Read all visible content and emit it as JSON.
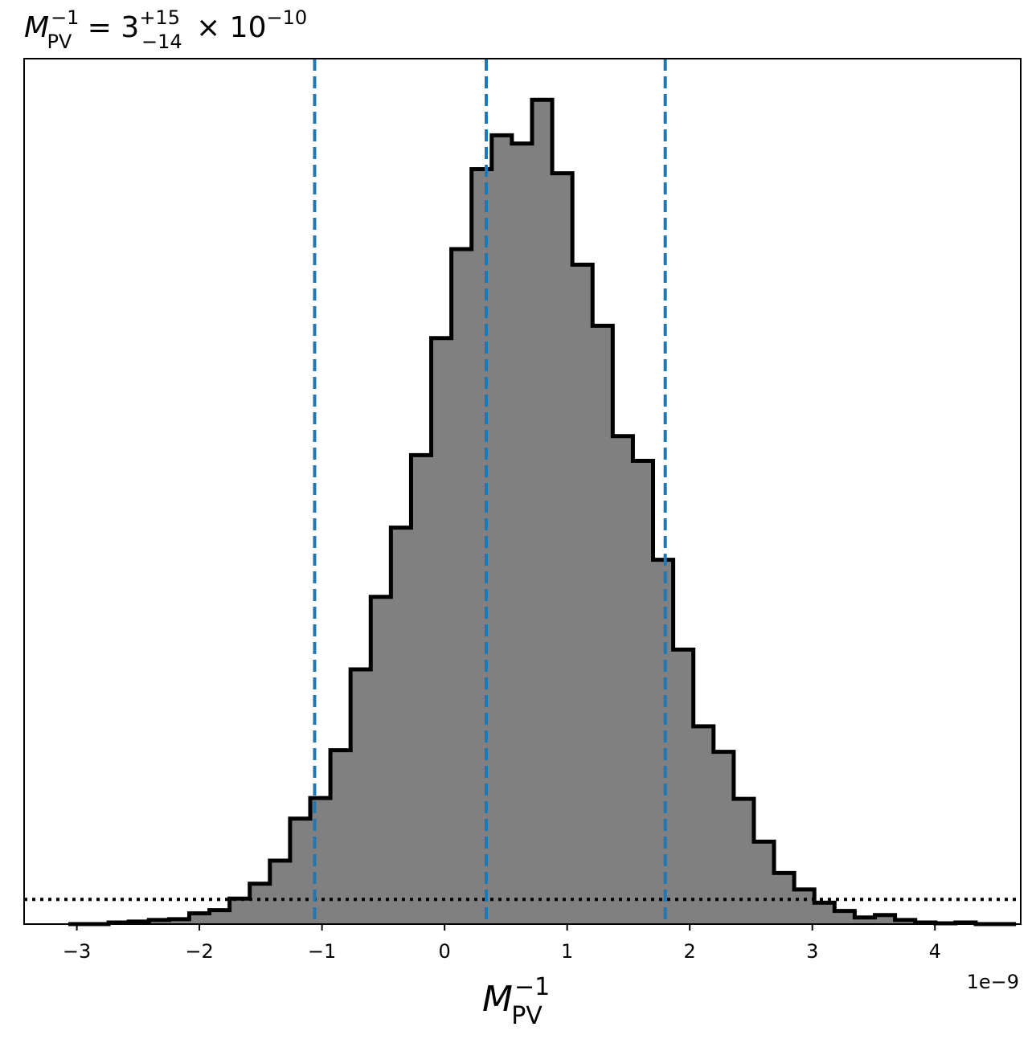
{
  "chart_data": {
    "type": "histogram",
    "title": {
      "lhs": "M",
      "lhs_sup": "−1",
      "lhs_sub": "PV",
      "equals": " = 3",
      "plus": "+15",
      "minus": "−14",
      "times": " × 10",
      "exp": "−10"
    },
    "xlabel": {
      "base": "M",
      "sup": "−1",
      "sub": "PV"
    },
    "x_offset_label": "1e−9",
    "xlim": [
      -3.43,
      4.7
    ],
    "ylim": [
      0,
      1.05
    ],
    "xticks": [
      {
        "value": -3,
        "label": "−3"
      },
      {
        "value": -2,
        "label": "−2"
      },
      {
        "value": -1,
        "label": "−1"
      },
      {
        "value": 0,
        "label": "0"
      },
      {
        "value": 1,
        "label": "1"
      },
      {
        "value": 2,
        "label": "2"
      },
      {
        "value": 3,
        "label": "3"
      },
      {
        "value": 4,
        "label": "4"
      }
    ],
    "bin_start": -3.07,
    "bin_width": 0.1645,
    "counts": [
      0.0,
      0.0,
      0.002,
      0.003,
      0.005,
      0.006,
      0.013,
      0.017,
      0.031,
      0.049,
      0.077,
      0.128,
      0.153,
      0.211,
      0.309,
      0.397,
      0.481,
      0.569,
      0.711,
      0.819,
      0.916,
      0.957,
      0.947,
      1.0,
      0.911,
      0.8,
      0.726,
      0.592,
      0.562,
      0.442,
      0.333,
      0.24,
      0.209,
      0.152,
      0.1,
      0.062,
      0.042,
      0.026,
      0.016,
      0.008,
      0.011,
      0.005,
      0.002,
      0.001,
      0.002,
      0.0,
      0.0
    ],
    "vlines": {
      "values": [
        -1.06,
        0.34,
        1.8
      ],
      "color": "#1f77b4",
      "style": "dashed"
    },
    "hline": {
      "value": 0.03,
      "color": "#000000",
      "style": "dotted"
    },
    "fill_color": "#808080",
    "edge_color": "#000000",
    "grid": false
  }
}
